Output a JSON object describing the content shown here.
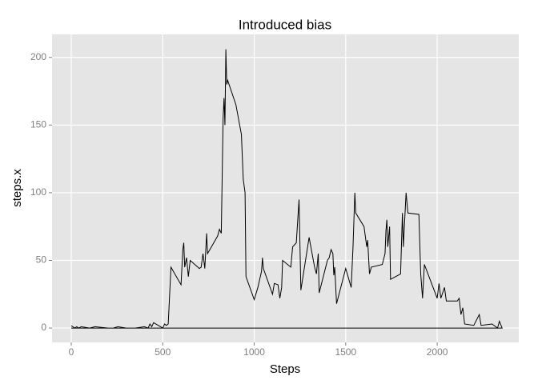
{
  "chart_data": {
    "type": "line",
    "title": "Introduced bias",
    "x_label": "Steps",
    "y_label": "steps.x",
    "color": "#000000",
    "grid": true,
    "x": [
      0,
      20,
      30,
      40,
      55,
      100,
      130,
      200,
      230,
      255,
      300,
      350,
      400,
      420,
      430,
      440,
      450,
      500,
      510,
      520,
      530,
      545,
      600,
      610,
      615,
      620,
      630,
      640,
      650,
      700,
      710,
      720,
      730,
      740,
      745,
      800,
      810,
      820,
      830,
      835,
      840,
      845,
      850,
      855,
      900,
      930,
      940,
      950,
      955,
      1000,
      1020,
      1040,
      1045,
      1050,
      1100,
      1110,
      1130,
      1140,
      1150,
      1155,
      1200,
      1210,
      1230,
      1245,
      1255,
      1300,
      1330,
      1340,
      1350,
      1355,
      1400,
      1410,
      1420,
      1430,
      1435,
      1440,
      1450,
      1500,
      1530,
      1540,
      1550,
      1555,
      1600,
      1615,
      1620,
      1630,
      1640,
      1700,
      1715,
      1720,
      1725,
      1730,
      1740,
      1745,
      1800,
      1810,
      1815,
      1830,
      1840,
      1900,
      1910,
      1920,
      1930,
      2000,
      2010,
      2020,
      2040,
      2050,
      2110,
      2120,
      2130,
      2140,
      2150,
      2200,
      2230,
      2240,
      2300,
      2330,
      2340,
      2355,
      0
    ],
    "values": [
      1.7,
      0,
      1,
      0,
      1,
      0,
      1,
      0,
      0,
      1,
      0,
      0,
      1,
      0,
      3,
      1,
      4,
      0,
      3,
      2,
      3,
      45,
      32,
      58,
      63,
      45,
      52,
      38,
      50,
      44,
      45,
      55,
      44,
      70,
      55,
      68,
      73,
      70,
      155,
      170,
      150,
      206,
      180,
      183,
      165,
      143,
      110,
      100,
      38,
      21,
      30,
      42,
      52,
      44,
      25,
      33,
      32,
      22,
      30,
      50,
      45,
      60,
      63,
      95,
      28,
      67,
      45,
      40,
      55,
      26,
      50,
      52,
      58,
      55,
      39,
      45,
      18,
      44,
      30,
      60,
      100,
      85,
      75,
      60,
      65,
      40,
      45,
      47,
      55,
      72,
      80,
      60,
      75,
      36,
      40,
      85,
      60,
      100,
      85,
      84,
      40,
      22,
      47,
      22,
      33,
      22,
      30,
      20,
      20,
      22,
      10,
      15,
      3,
      2,
      10,
      2,
      3,
      0,
      5,
      0,
      0
    ],
    "xlim": [
      -105,
      2446
    ],
    "ylim": [
      -10.6,
      217
    ],
    "xticks": [
      0,
      500,
      1000,
      1500,
      2000
    ],
    "yticks": [
      0,
      50,
      100,
      150,
      200
    ]
  }
}
